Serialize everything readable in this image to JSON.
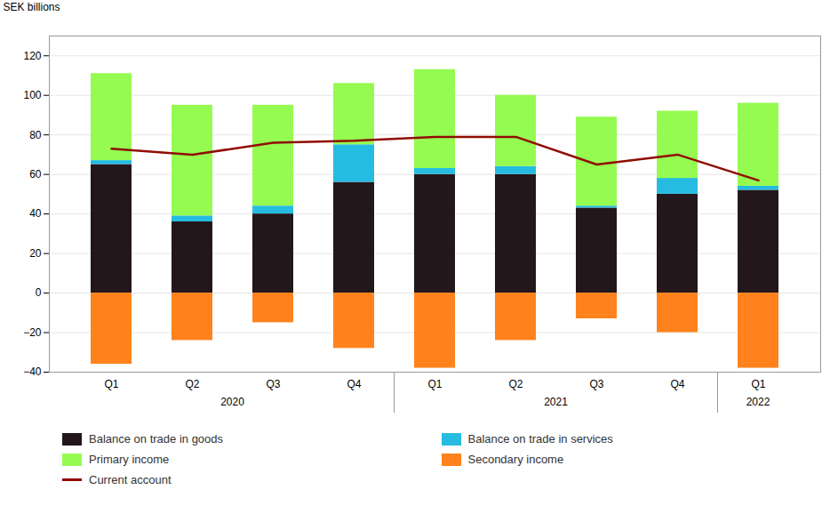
{
  "chart_data": {
    "type": "bar",
    "stacked": true,
    "ylabel": "SEK billions",
    "categories": [
      "Q1",
      "Q2",
      "Q3",
      "Q4",
      "Q1",
      "Q2",
      "Q3",
      "Q4",
      "Q1"
    ],
    "annotations": [
      {
        "text": "2020",
        "from": 0,
        "to": 3
      },
      {
        "text": "2021",
        "from": 4,
        "to": 7
      },
      {
        "text": "2022",
        "from": 8,
        "to": 8
      }
    ],
    "series": [
      {
        "name": "Balance on trade in goods",
        "type": "bar",
        "values": [
          65,
          36,
          40,
          56,
          60,
          60,
          43,
          50,
          52
        ]
      },
      {
        "name": "Balance on trade in services",
        "type": "bar",
        "values": [
          2,
          3,
          4,
          19,
          3,
          4,
          1,
          8,
          2
        ]
      },
      {
        "name": "Primary income",
        "type": "bar",
        "values": [
          44,
          56,
          51,
          31,
          50,
          36,
          45,
          34,
          42
        ]
      },
      {
        "name": "Secondary income",
        "type": "bar",
        "values": [
          -36,
          -24,
          -15,
          -28,
          -38,
          -24,
          -13,
          -20,
          -38
        ]
      },
      {
        "name": "Current account",
        "type": "line",
        "values": [
          73,
          70,
          76,
          77,
          79,
          79,
          65,
          70,
          57
        ]
      }
    ],
    "ylim": [
      -40,
      130
    ],
    "yticks": [
      -40,
      -20,
      0,
      20,
      40,
      60,
      80,
      100,
      120
    ],
    "grid": true,
    "legend": "bottom"
  }
}
